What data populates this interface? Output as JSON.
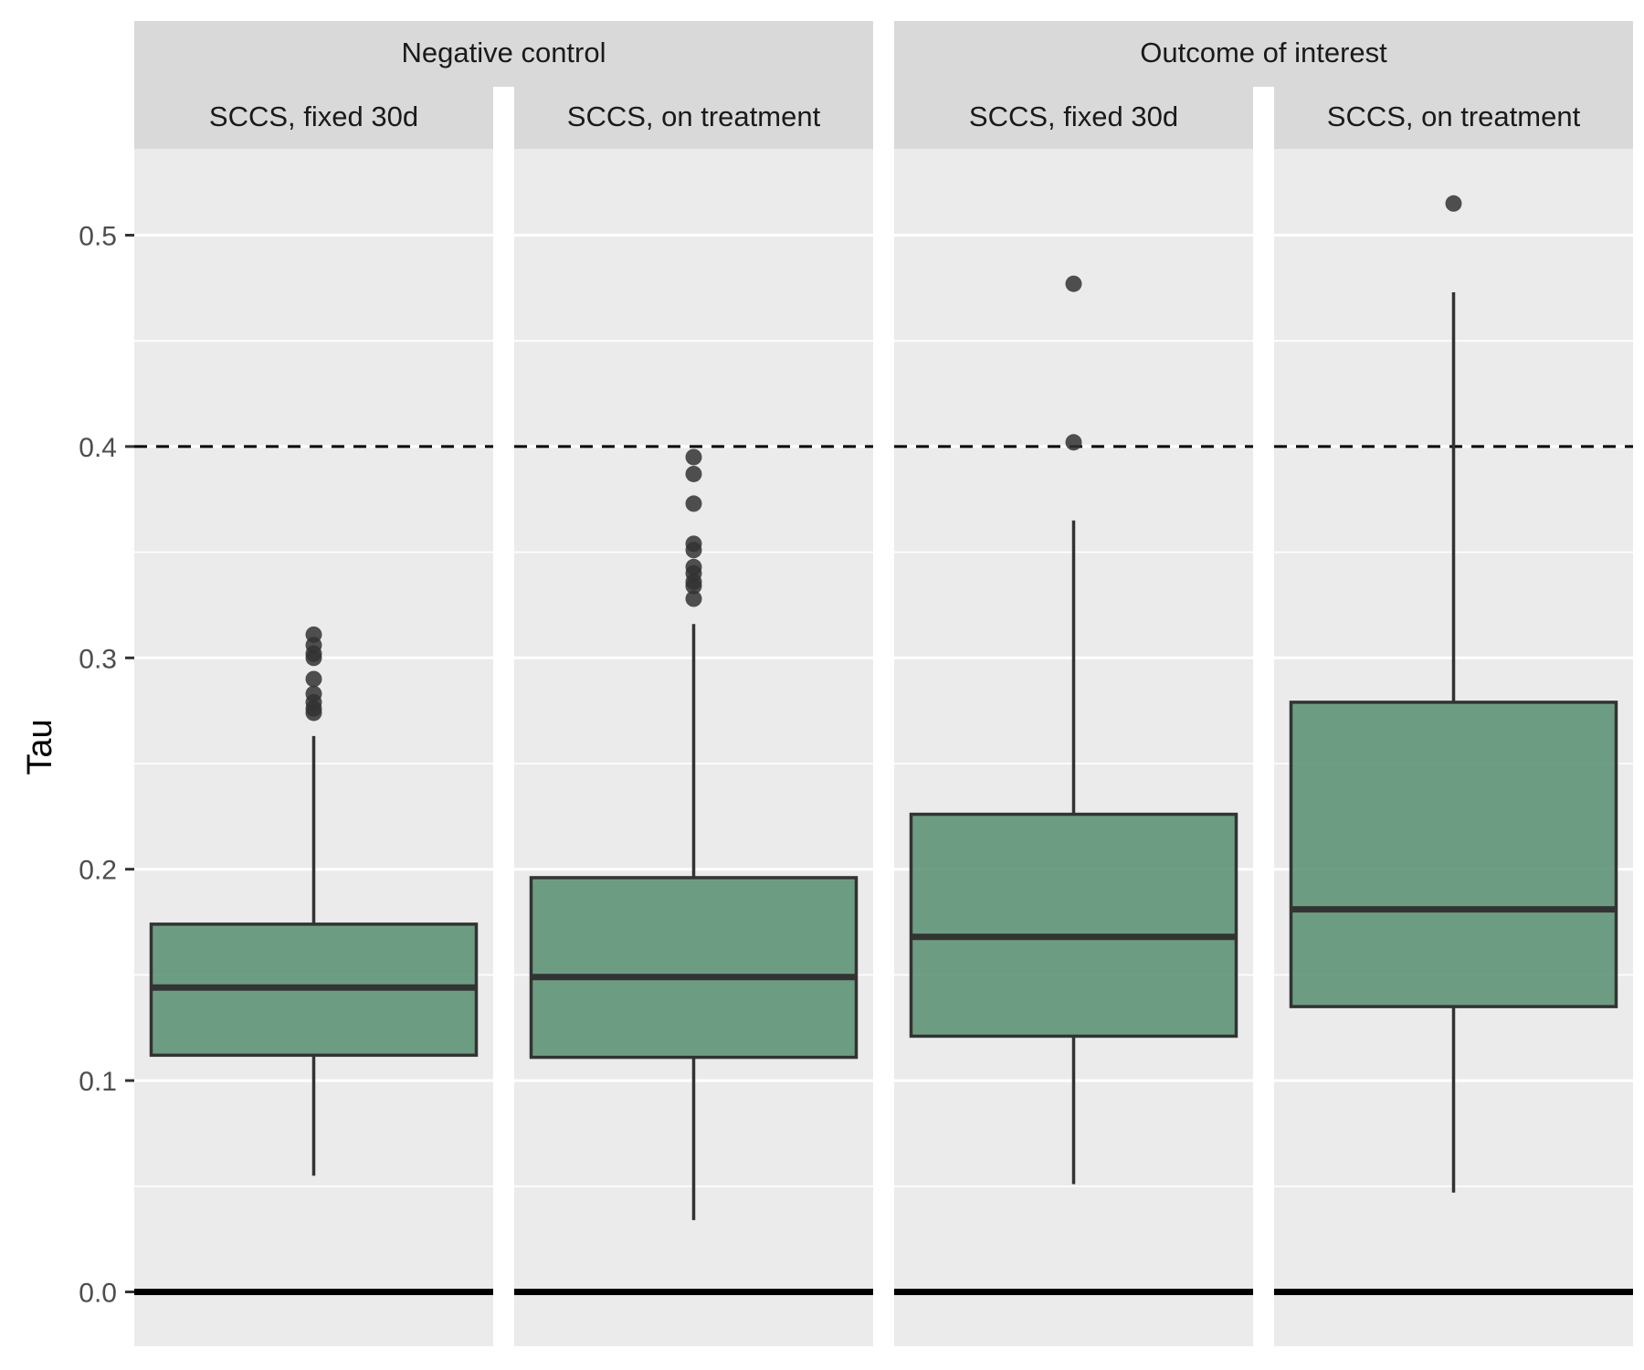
{
  "chart_data": {
    "type": "boxplot",
    "ylabel": "Tau",
    "xlabel": "",
    "ylim": [
      -0.025,
      0.54
    ],
    "yticks": [
      {
        "value": 0.0,
        "label": "0.0"
      },
      {
        "value": 0.1,
        "label": "0.1"
      },
      {
        "value": 0.2,
        "label": "0.2"
      },
      {
        "value": 0.3,
        "label": "0.3"
      },
      {
        "value": 0.4,
        "label": "0.4"
      },
      {
        "value": 0.5,
        "label": "0.5"
      }
    ],
    "reference_lines": [
      {
        "value": 0.0,
        "style": "solid"
      },
      {
        "value": 0.4,
        "style": "dashed"
      }
    ],
    "grid": true,
    "colors": {
      "box_fill": "#5a9273",
      "box_line": "#333333",
      "panel_bg": "#ebebeb",
      "strip_bg": "#d9d9d9"
    },
    "groups": [
      {
        "label": "Negative control",
        "panels": [
          {
            "label": "SCCS, fixed 30d",
            "box": {
              "whisker_low": 0.055,
              "q1": 0.112,
              "median": 0.144,
              "q3": 0.174,
              "whisker_high": 0.263
            },
            "outliers": [
              0.274,
              0.276,
              0.279,
              0.283,
              0.29,
              0.3,
              0.302,
              0.306,
              0.311
            ]
          },
          {
            "label": "SCCS, on treatment",
            "box": {
              "whisker_low": 0.034,
              "q1": 0.111,
              "median": 0.149,
              "q3": 0.196,
              "whisker_high": 0.316
            },
            "outliers": [
              0.328,
              0.334,
              0.336,
              0.34,
              0.343,
              0.351,
              0.354,
              0.373,
              0.387,
              0.395
            ]
          }
        ]
      },
      {
        "label": "Outcome of interest",
        "panels": [
          {
            "label": "SCCS, fixed 30d",
            "box": {
              "whisker_low": 0.051,
              "q1": 0.121,
              "median": 0.168,
              "q3": 0.226,
              "whisker_high": 0.365
            },
            "outliers": [
              0.402,
              0.477
            ]
          },
          {
            "label": "SCCS, on treatment",
            "box": {
              "whisker_low": 0.047,
              "q1": 0.135,
              "median": 0.181,
              "q3": 0.279,
              "whisker_high": 0.473
            },
            "outliers": [
              0.515
            ]
          }
        ]
      }
    ]
  }
}
